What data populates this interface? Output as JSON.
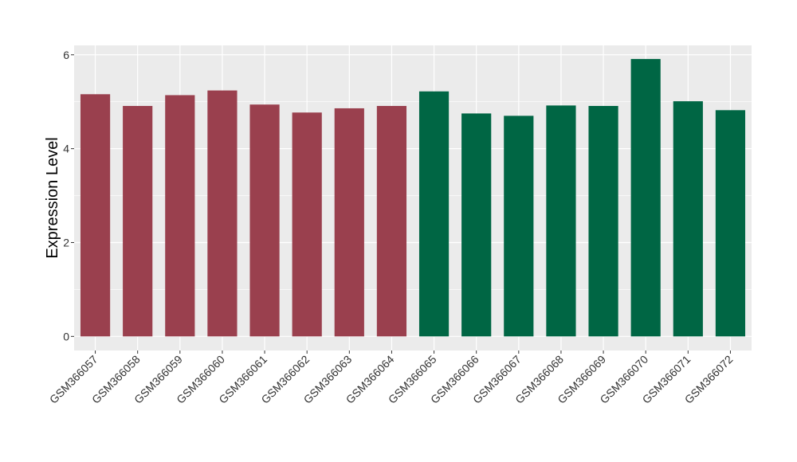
{
  "chart_data": {
    "type": "bar",
    "title": "",
    "xlabel": "",
    "ylabel": "Expression Level",
    "ylim": [
      -0.3,
      6.2
    ],
    "yticks": [
      0,
      2,
      4,
      6
    ],
    "grid": true,
    "legend": "none",
    "colors": {
      "group1": "#9a404e",
      "group2": "#006644",
      "panel": "#ebebeb",
      "grid": "#ffffff"
    },
    "categories": [
      "GSM366057",
      "GSM366058",
      "GSM366059",
      "GSM366060",
      "GSM366061",
      "GSM366062",
      "GSM366063",
      "GSM366064",
      "GSM366065",
      "GSM366066",
      "GSM366067",
      "GSM366068",
      "GSM366069",
      "GSM366070",
      "GSM366071",
      "GSM366072"
    ],
    "values": [
      5.16,
      4.91,
      5.14,
      5.24,
      4.94,
      4.77,
      4.86,
      4.91,
      5.22,
      4.75,
      4.7,
      4.92,
      4.91,
      5.91,
      5.01,
      4.82
    ],
    "groups": [
      1,
      1,
      1,
      1,
      1,
      1,
      1,
      1,
      2,
      2,
      2,
      2,
      2,
      2,
      2,
      2
    ]
  }
}
